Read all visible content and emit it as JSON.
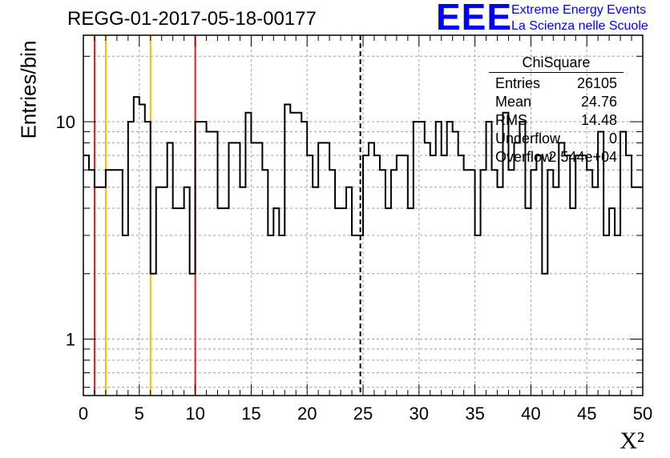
{
  "title": "REGG-01-2017-05-18-00177",
  "logo": {
    "mark": "EEE",
    "line1": "Extreme Energy Events",
    "line2": "La Scienza nelle Scuole",
    "color": "#0000ff"
  },
  "stats": {
    "title": "ChiSquare",
    "rows": [
      {
        "name": "Entries",
        "value": "26105"
      },
      {
        "name": "Mean",
        "value": "24.76"
      },
      {
        "name": "RMS",
        "value": "14.48"
      },
      {
        "name": "Underflow",
        "value": "0"
      },
      {
        "name": "Overflow",
        "value": "2.544e+04"
      }
    ]
  },
  "chart_data": {
    "type": "histogram",
    "ylabel": "Entries/bin",
    "xlabel": "X²",
    "xlim": [
      0,
      50
    ],
    "ylim": [
      0.55,
      25
    ],
    "yscale": "log",
    "grid": true,
    "bin_width": 0.5,
    "x_ticks": [
      "0",
      "5",
      "10",
      "15",
      "20",
      "25",
      "30",
      "35",
      "40",
      "45",
      "50"
    ],
    "y_ticks": [
      "1",
      "10"
    ],
    "values": [
      7,
      6,
      5,
      5,
      6,
      6,
      6,
      3,
      10,
      13,
      12,
      10,
      2,
      5,
      5,
      8,
      4,
      4,
      5,
      2,
      10,
      10,
      9,
      9,
      4,
      4,
      8,
      8,
      5,
      11,
      8,
      8,
      6,
      3,
      4,
      3,
      12,
      11,
      11,
      10,
      7,
      5,
      8,
      8,
      6,
      4,
      4,
      5,
      3,
      3,
      7,
      8,
      7,
      6,
      4,
      6,
      7,
      7,
      4,
      10,
      10,
      8,
      7,
      10,
      7,
      10,
      9,
      7,
      6,
      6,
      3,
      6,
      10,
      6,
      5,
      11,
      6,
      8,
      10,
      4,
      6,
      7,
      2,
      6,
      5,
      8,
      7,
      4,
      7,
      7,
      6,
      5,
      9,
      3,
      4,
      3,
      9,
      7,
      5,
      5
    ],
    "vlines": [
      {
        "x": 1,
        "color": "#e02020"
      },
      {
        "x": 2,
        "color": "#f0c000"
      },
      {
        "x": 6,
        "color": "#f0c000"
      },
      {
        "x": 10,
        "color": "#e02020"
      },
      {
        "x": 24.76,
        "color": "#000000",
        "style": "dashed"
      }
    ]
  }
}
